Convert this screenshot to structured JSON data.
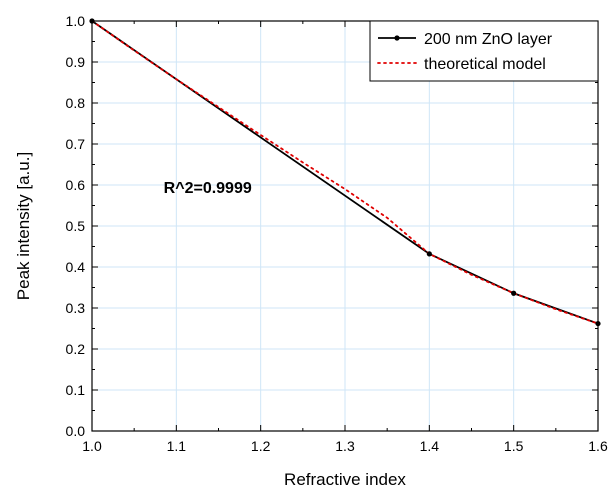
{
  "chart_data": {
    "type": "line",
    "xlabel": "Refractive index",
    "ylabel": "Peak intensity [a.u.]",
    "xlim": [
      1.0,
      1.6
    ],
    "ylim": [
      0.0,
      1.0
    ],
    "x_ticks": [
      "1.0",
      "1.1",
      "1.2",
      "1.3",
      "1.4",
      "1.5",
      "1.6"
    ],
    "y_ticks": [
      "0.0",
      "0.1",
      "0.2",
      "0.3",
      "0.4",
      "0.5",
      "0.6",
      "0.7",
      "0.8",
      "0.9",
      "1.0"
    ],
    "grid": true,
    "legend_position": "top-right",
    "annotation": "R^2=0.9999",
    "series": [
      {
        "name": "200 nm ZnO layer",
        "style": "solid-with-markers",
        "color": "#000000",
        "x": [
          1.0,
          1.4,
          1.5,
          1.6
        ],
        "y": [
          1.0,
          0.432,
          0.336,
          0.262
        ]
      },
      {
        "name": "theoretical model",
        "style": "dotted",
        "color": "#e00000",
        "x": [
          1.0,
          1.05,
          1.1,
          1.15,
          1.2,
          1.25,
          1.3,
          1.35,
          1.4,
          1.45,
          1.5,
          1.55,
          1.6
        ],
        "y": [
          1.0,
          0.928,
          0.858,
          0.79,
          0.722,
          0.655,
          0.59,
          0.52,
          0.432,
          0.381,
          0.336,
          0.297,
          0.262
        ]
      }
    ]
  }
}
